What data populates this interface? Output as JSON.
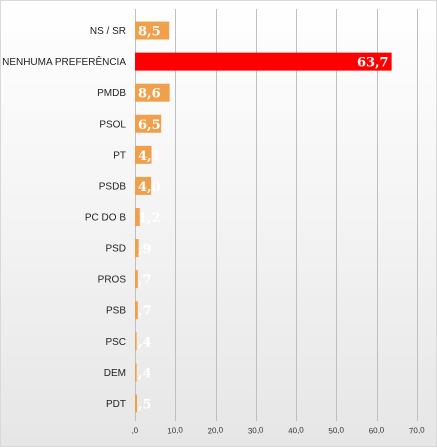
{
  "chart_data": {
    "type": "bar",
    "orientation": "horizontal",
    "categories": [
      "NS / SR",
      "NENHUMA PREFERÊNCIA",
      "PMDB",
      "PSOL",
      "PT",
      "PSDB",
      "PC DO B",
      "PSD",
      "PROS",
      "PSB",
      "PSC",
      "DEM",
      "PDT"
    ],
    "values": [
      8.5,
      63.7,
      8.6,
      6.5,
      4.1,
      4.0,
      1.2,
      0.9,
      0.7,
      0.7,
      0.4,
      0.4,
      0.5
    ],
    "value_labels": [
      "8,5",
      "63,7",
      "8,6",
      "6,5",
      "4,1",
      "4,0",
      "1,2",
      ",9",
      ",7",
      ",7",
      ",4",
      ",4",
      ",5"
    ],
    "bar_colors": [
      "#f0a04b",
      "#ff0000",
      "#f0a04b",
      "#f0a04b",
      "#f0a04b",
      "#f0a04b",
      "#f0a04b",
      "#f0a04b",
      "#f0a04b",
      "#f0a04b",
      "#f0a04b",
      "#f0a04b",
      "#f0a04b"
    ],
    "xlim": [
      0,
      70
    ],
    "x_ticks": [
      ",0",
      "10,0",
      "20,0",
      "30,0",
      "40,0",
      "50,0",
      "60,0",
      "70,0"
    ],
    "x_tick_values": [
      0,
      10,
      20,
      30,
      40,
      50,
      60,
      70
    ],
    "grid": "vertical",
    "legend": "none",
    "title": "",
    "xlabel": "",
    "ylabel": ""
  }
}
